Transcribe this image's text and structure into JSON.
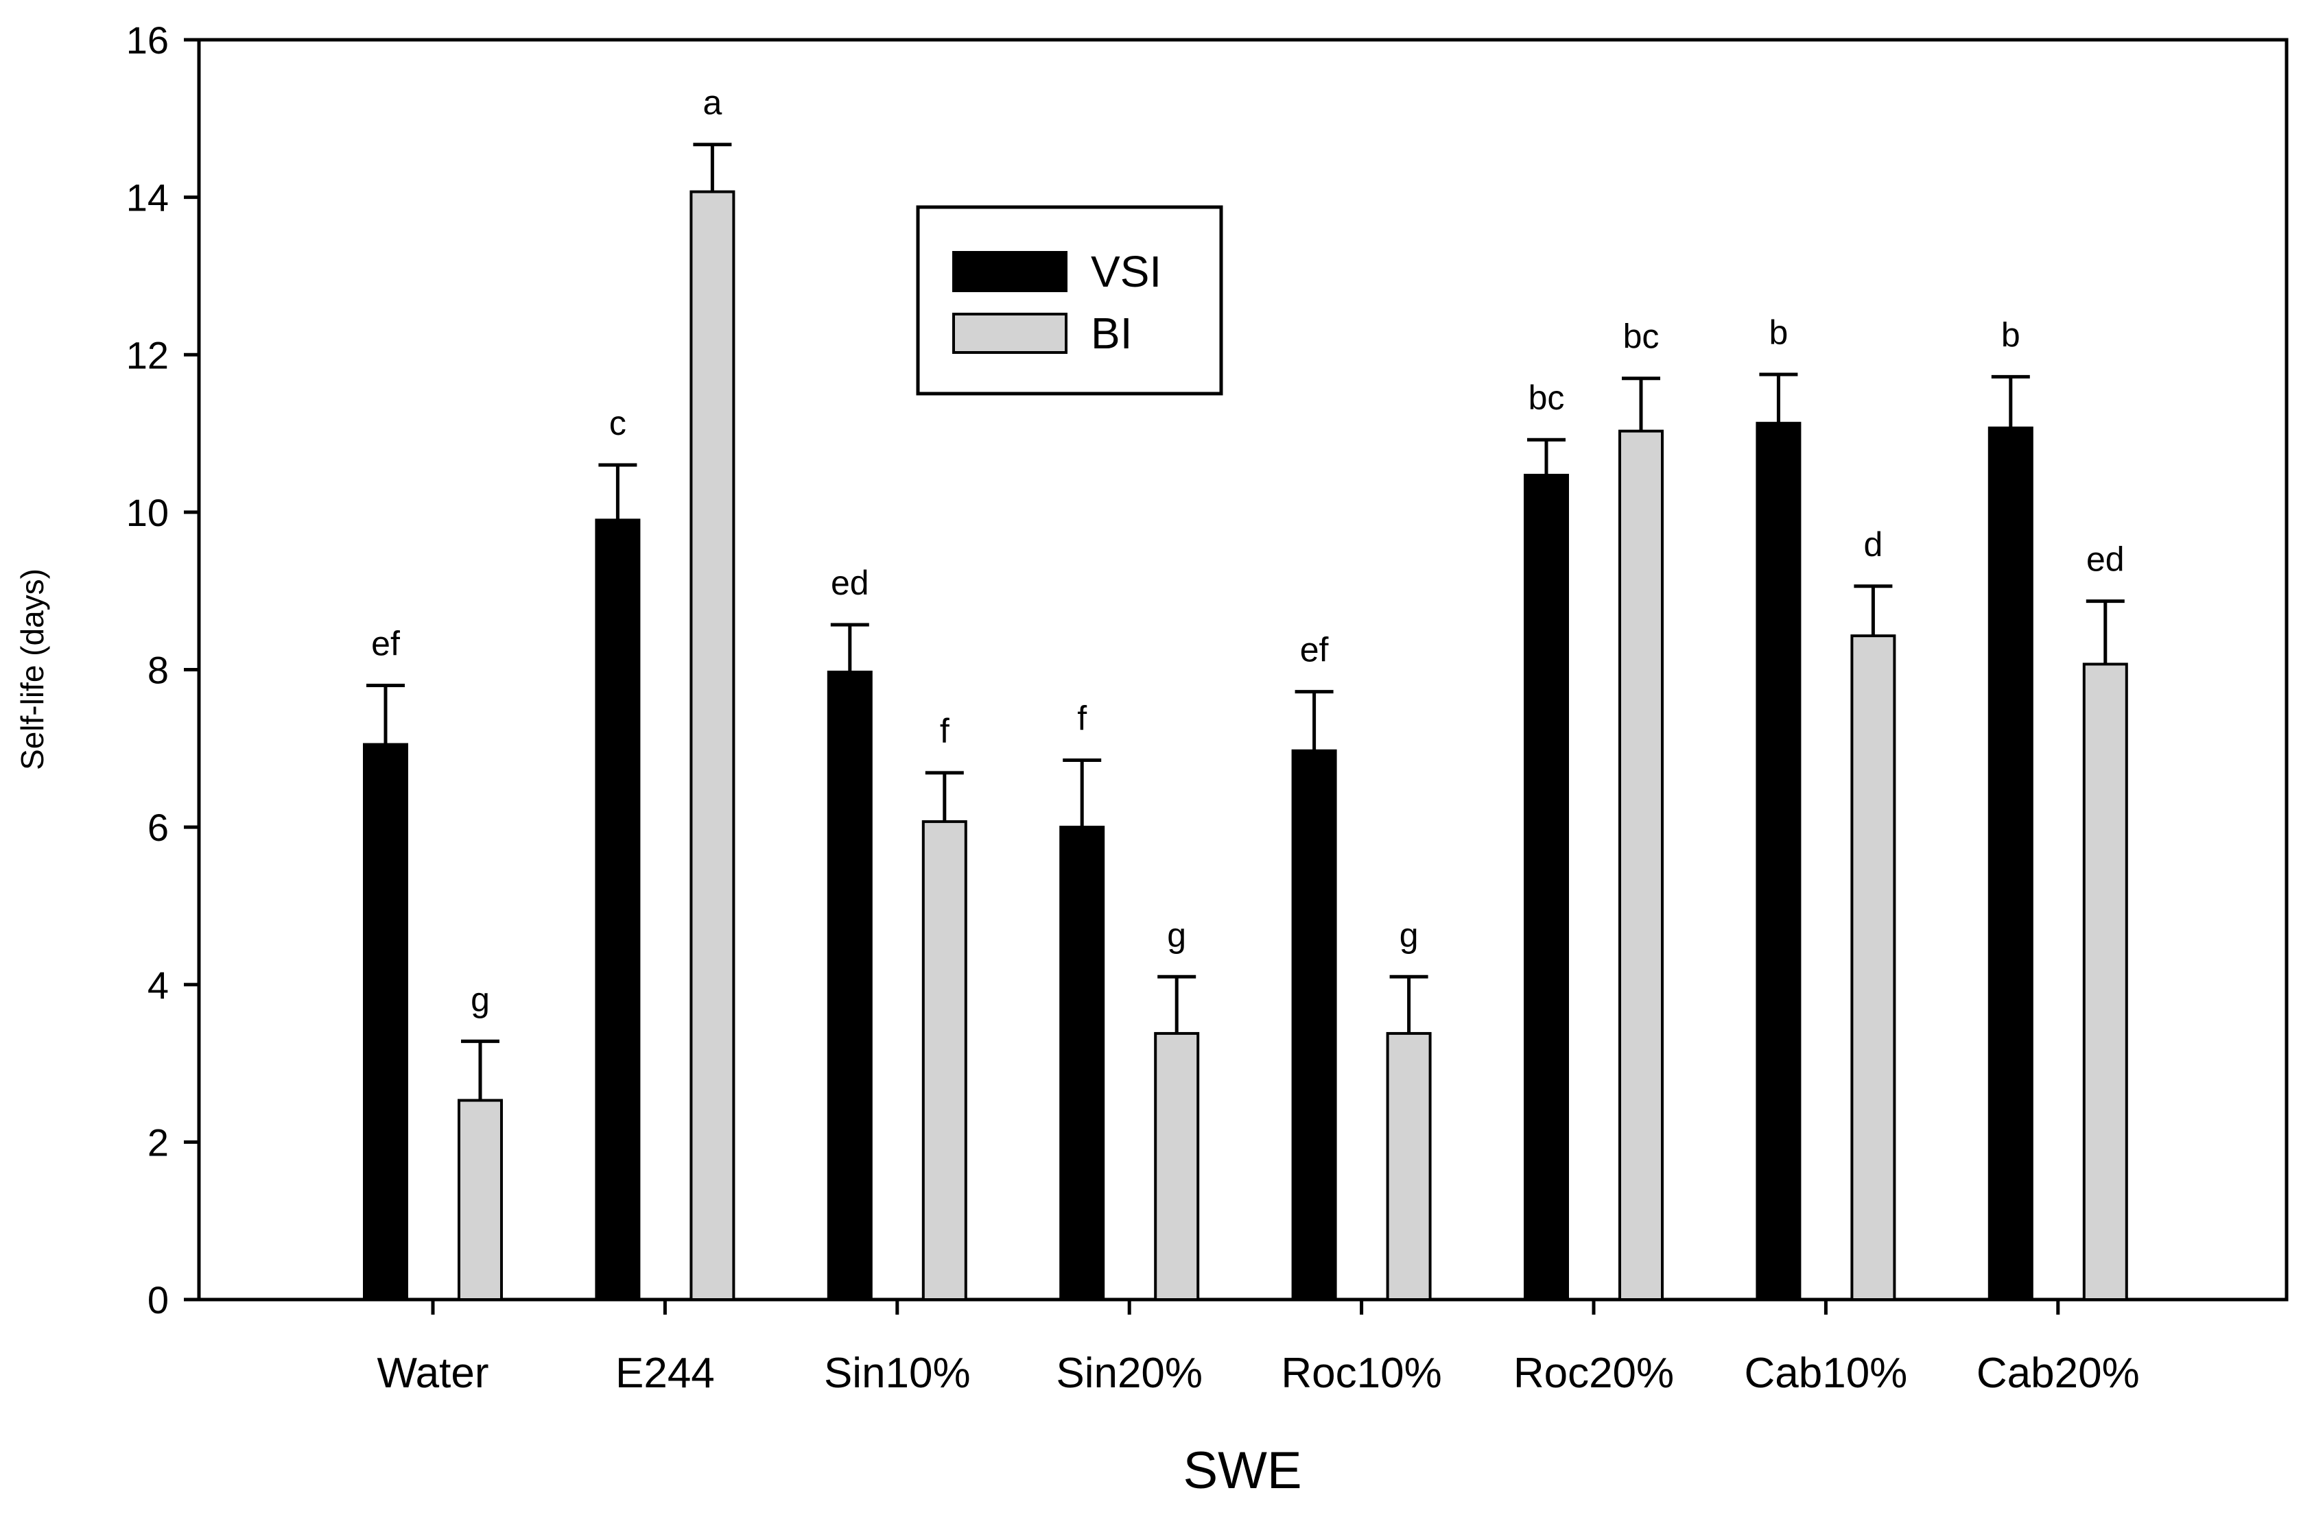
{
  "chart_data": {
    "type": "bar",
    "title": "",
    "xlabel": "SWE",
    "ylabel": "Self-life (days)",
    "ylim": [
      0,
      16
    ],
    "yticks": [
      0,
      2,
      4,
      6,
      8,
      10,
      12,
      14,
      16
    ],
    "grid": false,
    "legend_position": "top-center",
    "categories": [
      "Water",
      "E244",
      "Sin10%",
      "Sin20%",
      "Roc10%",
      "Roc20%",
      "Cab10%",
      "Cab20%"
    ],
    "series": [
      {
        "name": "VSI",
        "color": "#000000",
        "values": [
          7.05,
          9.9,
          7.97,
          6.0,
          6.97,
          10.47,
          11.13,
          11.07
        ],
        "errors": [
          0.75,
          0.7,
          0.6,
          0.85,
          0.75,
          0.45,
          0.62,
          0.65
        ],
        "letters": [
          "ef",
          "c",
          "ed",
          "f",
          "ef",
          "bc",
          "b",
          "b"
        ]
      },
      {
        "name": "BI",
        "color": "#d3d3d3",
        "values": [
          2.53,
          14.07,
          6.07,
          3.38,
          3.38,
          11.03,
          8.43,
          8.07
        ],
        "errors": [
          0.75,
          0.6,
          0.62,
          0.72,
          0.72,
          0.67,
          0.63,
          0.8
        ],
        "letters": [
          "g",
          "a",
          "f",
          "g",
          "g",
          "bc",
          "d",
          "ed"
        ]
      }
    ]
  }
}
